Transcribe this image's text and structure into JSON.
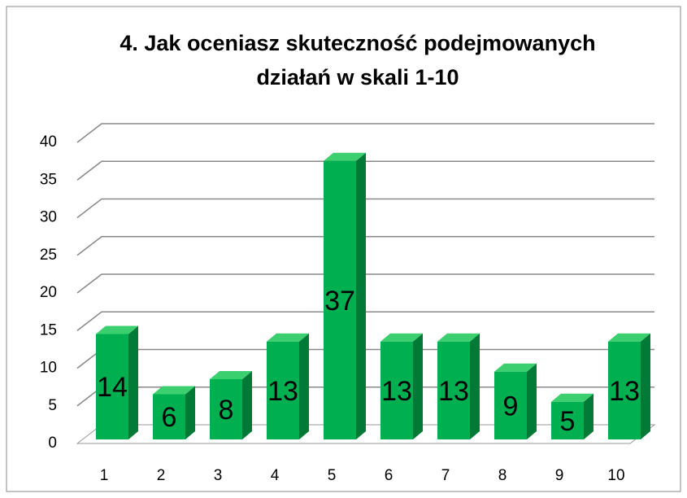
{
  "chart_data": {
    "type": "bar",
    "title": "4. Jak oceniasz skuteczność podejmowanych działań w skali 1-10",
    "categories": [
      "1",
      "2",
      "3",
      "4",
      "5",
      "6",
      "7",
      "8",
      "9",
      "10"
    ],
    "values": [
      14,
      6,
      8,
      13,
      37,
      13,
      13,
      9,
      5,
      13
    ],
    "color": "#00b050",
    "ylim": [
      0,
      40
    ],
    "yticks": [
      0,
      5,
      10,
      15,
      20,
      25,
      30,
      35,
      40
    ],
    "grid": true
  }
}
